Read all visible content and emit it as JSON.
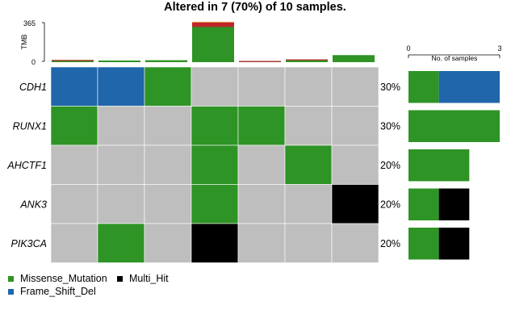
{
  "chart_data": {
    "type": "heatmap",
    "title": "Altered in 7 (70%) of 10 samples.",
    "genes": [
      "CDH1",
      "RUNX1",
      "AHCTF1",
      "ANK3",
      "PIK3CA"
    ],
    "percent_labels": [
      "30%",
      "30%",
      "20%",
      "20%",
      "20%"
    ],
    "sample_count": 7,
    "matrix": [
      [
        "Frame_Shift_Del",
        "Frame_Shift_Del",
        "Missense_Mutation",
        null,
        null,
        null,
        null
      ],
      [
        "Missense_Mutation",
        null,
        null,
        "Missense_Mutation",
        "Missense_Mutation",
        null,
        null
      ],
      [
        null,
        null,
        null,
        "Missense_Mutation",
        null,
        "Missense_Mutation",
        null
      ],
      [
        null,
        null,
        null,
        "Missense_Mutation",
        null,
        null,
        "Multi_Hit"
      ],
      [
        null,
        "Missense_Mutation",
        null,
        "Multi_Hit",
        null,
        null,
        null
      ]
    ],
    "tmb": {
      "ylabel": "TMB",
      "ticks": [
        0,
        365
      ],
      "ylim": [
        0,
        365
      ],
      "values": [
        {
          "total": 20,
          "red": 3
        },
        {
          "total": 15,
          "red": 0
        },
        {
          "total": 18,
          "red": 0
        },
        {
          "total": 365,
          "red": 40,
          "orange": 8
        },
        {
          "total": 5,
          "red": 3
        },
        {
          "total": 25,
          "red": 5
        },
        {
          "total": 65,
          "red": 0
        }
      ]
    },
    "gene_bar": {
      "xlabel": "No. of samples",
      "ticks": [
        0,
        3
      ],
      "xlim": [
        0,
        3
      ],
      "values": [
        {
          "Missense_Mutation": 1,
          "Frame_Shift_Del": 2
        },
        {
          "Missense_Mutation": 3
        },
        {
          "Missense_Mutation": 2
        },
        {
          "Missense_Mutation": 1,
          "Multi_Hit": 1
        },
        {
          "Missense_Mutation": 1,
          "Multi_Hit": 1
        }
      ]
    },
    "legend": [
      {
        "label": "Missense_Mutation",
        "type": "Missense_Mutation"
      },
      {
        "label": "Multi_Hit",
        "type": "Multi_Hit"
      },
      {
        "label": "Frame_Shift_Del",
        "type": "Frame_Shift_Del"
      }
    ],
    "colors": {
      "Missense_Mutation": "#2e9425",
      "Frame_Shift_Del": "#1f66aa",
      "Multi_Hit": "#000000",
      "background": "#bebebe",
      "tmb_red": "#c0262c",
      "tmb_orange": "#f29a4a"
    }
  }
}
